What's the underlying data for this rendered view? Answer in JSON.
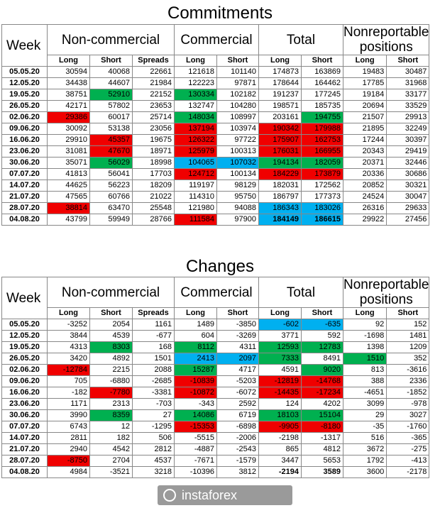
{
  "commitments": {
    "title": "Commitments",
    "headers": {
      "week": "Week",
      "non_commercial": "Non-commercial",
      "commercial": "Commercial",
      "total": "Total",
      "nonreportable": "Nonreportable positions",
      "long": "Long",
      "short": "Short",
      "spreads": "Spreads"
    },
    "rows": [
      [
        "05.05.20",
        "30594",
        "40068",
        "22661",
        "121618",
        "101140",
        "174873",
        "163869",
        "19483",
        "30487"
      ],
      [
        "12.05.20",
        "34438",
        "44607",
        "21984",
        "122223",
        "97871",
        "178644",
        "164462",
        "17785",
        "31968"
      ],
      [
        "19.05.20",
        "38751",
        "52910",
        "22152",
        "130334",
        "102182",
        "191237",
        "177245",
        "19184",
        "33177"
      ],
      [
        "26.05.20",
        "42171",
        "57802",
        "23653",
        "132747",
        "104280",
        "198571",
        "185735",
        "20694",
        "33529"
      ],
      [
        "02.06.20",
        "29386",
        "60017",
        "25714",
        "148034",
        "108997",
        "203161",
        "194755",
        "21507",
        "29913"
      ],
      [
        "09.06.20",
        "30092",
        "53138",
        "23056",
        "137194",
        "103974",
        "190342",
        "179988",
        "21895",
        "32249"
      ],
      [
        "16.06.20",
        "29910",
        "45357",
        "19675",
        "126322",
        "97722",
        "175907",
        "162753",
        "17244",
        "30397"
      ],
      [
        "23.06.20",
        "31081",
        "47670",
        "18971",
        "125979",
        "100313",
        "176031",
        "166955",
        "20343",
        "29419"
      ],
      [
        "30.06.20",
        "35071",
        "56029",
        "18998",
        "104065",
        "107032",
        "194134",
        "182059",
        "20371",
        "32446"
      ],
      [
        "07.07.20",
        "41813",
        "56041",
        "17703",
        "124712",
        "100134",
        "184229",
        "173879",
        "20336",
        "30686"
      ],
      [
        "14.07.20",
        "44625",
        "56223",
        "18209",
        "119197",
        "98129",
        "182031",
        "172562",
        "20852",
        "30321"
      ],
      [
        "21.07.20",
        "47565",
        "60766",
        "21022",
        "114310",
        "95750",
        "186797",
        "177373",
        "24524",
        "30047"
      ],
      [
        "28.07.20",
        "38814",
        "63470",
        "25548",
        "121980",
        "94088",
        "186343",
        "183026",
        "26316",
        "29633"
      ],
      [
        "04.08.20",
        "43799",
        "59949",
        "28766",
        "111584",
        "97900",
        "184149",
        "186615",
        "29922",
        "27456"
      ]
    ],
    "colors": [
      "..........",
      "..........",
      "..G.G.....",
      "..........",
      ".R..G..G..",
      "....R.RR..",
      "..R.R.RR..",
      "..R.R.RR..",
      "..G.BBGG..",
      "....R.RR..",
      "..........",
      "..........",
      ".R....BB..",
      "....R.BB.."
    ]
  },
  "changes": {
    "title": "Changes",
    "headers": {
      "week": "Week",
      "non_commercial": "Non-commercial",
      "commercial": "Commercial",
      "total": "Total",
      "nonreportable": "Nonreportable positions",
      "long": "Long",
      "short": "Short",
      "spreads": "Spreads"
    },
    "rows": [
      [
        "05.05.20",
        "-3252",
        "2054",
        "1161",
        "1489",
        "-3850",
        "-602",
        "-635",
        "92",
        "152"
      ],
      [
        "12.05.20",
        "3844",
        "4539",
        "-677",
        "604",
        "-3269",
        "3771",
        "592",
        "-1698",
        "1481"
      ],
      [
        "19.05.20",
        "4313",
        "8303",
        "168",
        "8112",
        "4311",
        "12593",
        "12783",
        "1398",
        "1209"
      ],
      [
        "26.05.20",
        "3420",
        "4892",
        "1501",
        "2413",
        "2097",
        "7333",
        "8491",
        "1510",
        "352"
      ],
      [
        "02.06.20",
        "-12784",
        "2215",
        "2088",
        "15287",
        "4717",
        "4591",
        "9020",
        "813",
        "-3616"
      ],
      [
        "09.06.20",
        "705",
        "-6880",
        "-2685",
        "-10839",
        "-5203",
        "-12819",
        "-14768",
        "388",
        "2336"
      ],
      [
        "16.06.20",
        "-182",
        "-7780",
        "-3381",
        "-10872",
        "-6072",
        "-14435",
        "-17234",
        "-4651",
        "-1852"
      ],
      [
        "23.06.20",
        "1171",
        "2313",
        "-703",
        "-343",
        "2592",
        "124",
        "4202",
        "3099",
        "-978"
      ],
      [
        "30.06.20",
        "3990",
        "8359",
        "27",
        "14086",
        "6719",
        "18103",
        "15104",
        "29",
        "3027"
      ],
      [
        "07.07.20",
        "6743",
        "12",
        "-1295",
        "-15353",
        "-6898",
        "-9905",
        "-8180",
        "-35",
        "-1760"
      ],
      [
        "14.07.20",
        "2811",
        "182",
        "506",
        "-5515",
        "-2006",
        "-2198",
        "-1317",
        "516",
        "-365"
      ],
      [
        "21.07.20",
        "2940",
        "4542",
        "2812",
        "-4887",
        "-2543",
        "865",
        "4812",
        "3672",
        "-275"
      ],
      [
        "28.07.20",
        "-8750",
        "2704",
        "4537",
        "-7671",
        "-1579",
        "3447",
        "5653",
        "1792",
        "-413"
      ],
      [
        "04.08.20",
        "4984",
        "-3521",
        "3218",
        "-10396",
        "3812",
        "-2194",
        "3589",
        "3600",
        "-2178"
      ]
    ],
    "colors": [
      "......BB..",
      "..........",
      "..G.G.GG..",
      "....BBG.G.",
      ".R..G..G..",
      "....R.RR..",
      "..R.R.RR..",
      "..........",
      "..G.G.GG..",
      "....R.RR..",
      "..........",
      "..........",
      ".R........",
      ".........."
    ]
  },
  "watermark": {
    "text": "instaforex"
  },
  "palette": {
    "red": "#f00000",
    "green": "#00b050",
    "blue": "#00b0f0"
  }
}
